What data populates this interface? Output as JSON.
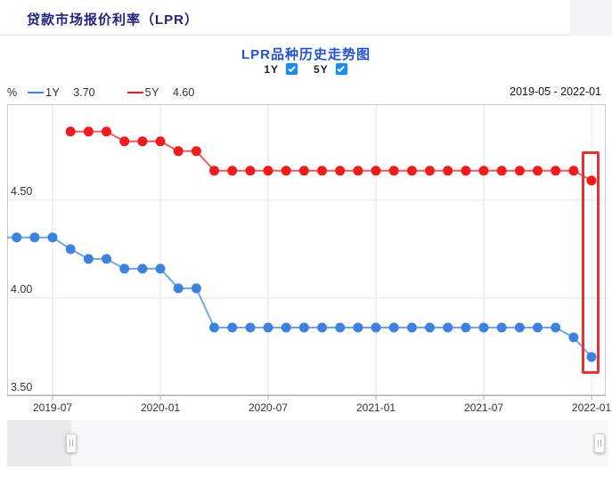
{
  "header": {
    "title": "贷款市场报价利率（LPR）"
  },
  "chart": {
    "title": "LPR品种历史走势图",
    "unit": "%",
    "date_range": "2019-05 - 2022-01",
    "toggles": [
      {
        "label": "1Y",
        "checked": true
      },
      {
        "label": "5Y",
        "checked": true
      }
    ],
    "legend": [
      {
        "name": "1Y",
        "latest_value": "3.70",
        "color": "#3d82dd"
      },
      {
        "name": "5Y",
        "latest_value": "4.60",
        "color": "#ee1c1c"
      }
    ]
  },
  "colors": {
    "checkbox": "#1b8bf5",
    "highlight_box": "#e63333",
    "grid_line": "#e2e4e8",
    "plot_border": "#c6cbd4",
    "axis_line": "#a9b0bd"
  },
  "chart_data": {
    "type": "line",
    "title": "LPR品种历史走势图",
    "ylabel": "%",
    "ylim": [
      3.5,
      4.99
    ],
    "yticks": [
      {
        "value": 4.5,
        "label": "4.50"
      },
      {
        "value": 4.0,
        "label": "4.00"
      },
      {
        "value": 3.5,
        "label": "3.50"
      }
    ],
    "xticks": [
      "2019-07",
      "2020-01",
      "2020-07",
      "2021-01",
      "2021-07",
      "2022-01"
    ],
    "grid": true,
    "legend_position": "top-left",
    "highlight_month": "2022-01",
    "x": [
      "2019-05",
      "2019-06",
      "2019-07",
      "2019-08",
      "2019-09",
      "2019-10",
      "2019-11",
      "2019-12",
      "2020-01",
      "2020-02",
      "2020-03",
      "2020-04",
      "2020-05",
      "2020-06",
      "2020-07",
      "2020-08",
      "2020-09",
      "2020-10",
      "2020-11",
      "2020-12",
      "2021-01",
      "2021-02",
      "2021-03",
      "2021-04",
      "2021-05",
      "2021-06",
      "2021-07",
      "2021-08",
      "2021-09",
      "2021-10",
      "2021-11",
      "2021-12",
      "2022-01"
    ],
    "series": [
      {
        "name": "1Y",
        "color": "#3d82dd",
        "values": [
          4.31,
          4.31,
          4.31,
          4.25,
          4.2,
          4.2,
          4.15,
          4.15,
          4.15,
          4.05,
          4.05,
          3.85,
          3.85,
          3.85,
          3.85,
          3.85,
          3.85,
          3.85,
          3.85,
          3.85,
          3.85,
          3.85,
          3.85,
          3.85,
          3.85,
          3.85,
          3.85,
          3.85,
          3.85,
          3.85,
          3.85,
          3.8,
          3.7
        ]
      },
      {
        "name": "5Y",
        "color": "#ee1c1c",
        "values": [
          null,
          null,
          null,
          4.85,
          4.85,
          4.85,
          4.8,
          4.8,
          4.8,
          4.75,
          4.75,
          4.65,
          4.65,
          4.65,
          4.65,
          4.65,
          4.65,
          4.65,
          4.65,
          4.65,
          4.65,
          4.65,
          4.65,
          4.65,
          4.65,
          4.65,
          4.65,
          4.65,
          4.65,
          4.65,
          4.65,
          4.65,
          4.6
        ]
      }
    ]
  }
}
